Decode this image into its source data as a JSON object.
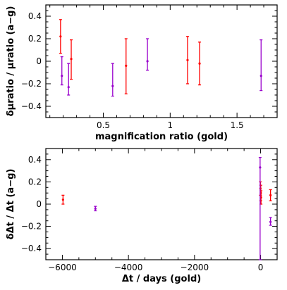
{
  "chart_data": [
    {
      "type": "scatter",
      "title": "",
      "xlabel": "magnification ratio (gold)",
      "ylabel": "δμratio / μratio (a−g)",
      "xlim": [
        0.07,
        1.8
      ],
      "ylim": [
        -0.5,
        0.5
      ],
      "xticks": [
        0.5,
        1,
        1.5
      ],
      "xtick_labels": [
        "0.5",
        "1",
        "1.5"
      ],
      "yticks": [
        -0.4,
        -0.2,
        0,
        0.2,
        0.4
      ],
      "ytick_labels": [
        "−0.4",
        "−0.2",
        "0",
        "0.2",
        "0.4"
      ],
      "x_minor_step": 0.1,
      "y_minor_step": 0.05,
      "grid": false,
      "legend": "none",
      "series": [
        {
          "color": "#ff0000",
          "points": [
            {
              "x": 0.18,
              "y": 0.22,
              "err_low": 0.15,
              "err_high": 0.15
            },
            {
              "x": 0.26,
              "y": 0.02,
              "err_low": 0.18,
              "err_high": 0.17
            },
            {
              "x": 0.67,
              "y": -0.04,
              "err_low": 0.25,
              "err_high": 0.24
            },
            {
              "x": 1.13,
              "y": 0.01,
              "err_low": 0.21,
              "err_high": 0.21
            },
            {
              "x": 1.22,
              "y": -0.02,
              "err_low": 0.19,
              "err_high": 0.19
            }
          ]
        },
        {
          "color": "#9900cc",
          "points": [
            {
              "x": 0.19,
              "y": -0.13,
              "err_low": 0.08,
              "err_high": 0.17
            },
            {
              "x": 0.24,
              "y": -0.23,
              "err_low": 0.07,
              "err_high": 0.21
            },
            {
              "x": 0.57,
              "y": -0.22,
              "err_low": 0.09,
              "err_high": 0.2
            },
            {
              "x": 0.83,
              "y": 0.0,
              "err_low": 0.08,
              "err_high": 0.2
            },
            {
              "x": 1.68,
              "y": -0.13,
              "err_low": 0.13,
              "err_high": 0.32
            }
          ]
        }
      ]
    },
    {
      "type": "scatter",
      "title": "",
      "xlabel": "Δt / days (gold)",
      "ylabel": "δΔt / Δt (a−g)",
      "xlim": [
        -6500,
        500
      ],
      "ylim": [
        -0.5,
        0.5
      ],
      "xticks": [
        -6000,
        -4000,
        -2000,
        0
      ],
      "xtick_labels": [
        "−6000",
        "−4000",
        "−2000",
        "0"
      ],
      "yticks": [
        -0.4,
        -0.2,
        0,
        0.2,
        0.4
      ],
      "ytick_labels": [
        "−0.4",
        "−0.2",
        "0",
        "0.2",
        "0.4"
      ],
      "x_minor_step": 500,
      "y_minor_step": 0.05,
      "grid": false,
      "legend": "none",
      "series": [
        {
          "color": "#ff0000",
          "points": [
            {
              "x": -5980,
              "y": 0.04,
              "err_low": 0.04,
              "err_high": 0.04
            },
            {
              "x": -5,
              "y": 0.14,
              "err_low": 0.06,
              "err_high": 0.06
            },
            {
              "x": 5,
              "y": 0.1,
              "err_low": 0.07,
              "err_high": 0.07
            },
            {
              "x": 12,
              "y": 0.06,
              "err_low": 0.06,
              "err_high": 0.06
            },
            {
              "x": 300,
              "y": 0.08,
              "err_low": 0.05,
              "err_high": 0.05
            }
          ]
        },
        {
          "color": "#9900cc",
          "points": [
            {
              "x": -5000,
              "y": -0.04,
              "err_low": 0.02,
              "err_high": 0.02
            },
            {
              "x": -15,
              "y": 0.33,
              "err_low": 0.83,
              "err_high": 0.09
            },
            {
              "x": 300,
              "y": -0.16,
              "err_low": 0.03,
              "err_high": 0.04
            }
          ]
        }
      ]
    }
  ]
}
